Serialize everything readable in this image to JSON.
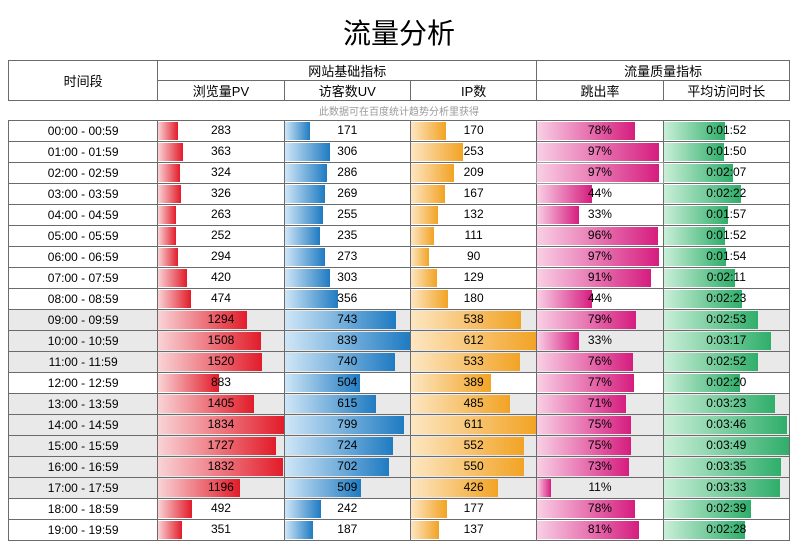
{
  "title": "流量分析",
  "sub_note": "此数据可在百度统计趋势分析里获得",
  "headers": {
    "time": "时间段",
    "group_basic": "网站基础指标",
    "group_quality": "流量质量指标",
    "pv": "浏览量PV",
    "uv": "访客数UV",
    "ip": "IP数",
    "bounce": "跳出率",
    "avg_time": "平均访问时长"
  },
  "colors": {
    "pv": [
      "#f9d3d6",
      "#e21c2a"
    ],
    "uv": [
      "#cfe6f7",
      "#1f7bc2"
    ],
    "ip": [
      "#fde6c2",
      "#f2a324"
    ],
    "bounce": [
      "#f9cfe5",
      "#d61d7f"
    ],
    "time": [
      "#c9efd8",
      "#2fae6a"
    ],
    "border": "#6b6b6b",
    "row_hi": "#e9e9e9"
  },
  "max": {
    "pv": 1834,
    "uv": 839,
    "ip": 612,
    "bounce": 100,
    "time": 229
  },
  "highlight_rows": [
    9,
    10,
    11,
    13,
    14,
    15,
    16,
    17
  ],
  "highlight_bounce_cell_row": 2,
  "rows": [
    {
      "t": "00:00 - 00:59",
      "pv": 283,
      "uv": 171,
      "ip": 170,
      "b": 78,
      "d": "0:01:52",
      "ds": 112
    },
    {
      "t": "01:00 - 01:59",
      "pv": 363,
      "uv": 306,
      "ip": 253,
      "b": 97,
      "d": "0:01:50",
      "ds": 110
    },
    {
      "t": "02:00 - 02:59",
      "pv": 324,
      "uv": 286,
      "ip": 209,
      "b": 97,
      "d": "0:02:07",
      "ds": 127
    },
    {
      "t": "03:00 - 03:59",
      "pv": 326,
      "uv": 269,
      "ip": 167,
      "b": 44,
      "d": "0:02:22",
      "ds": 142
    },
    {
      "t": "04:00 - 04:59",
      "pv": 263,
      "uv": 255,
      "ip": 132,
      "b": 33,
      "d": "0:01:57",
      "ds": 117
    },
    {
      "t": "05:00 - 05:59",
      "pv": 252,
      "uv": 235,
      "ip": 111,
      "b": 96,
      "d": "0:01:52",
      "ds": 112
    },
    {
      "t": "06:00 - 06:59",
      "pv": 294,
      "uv": 273,
      "ip": 90,
      "b": 97,
      "d": "0:01:54",
      "ds": 114
    },
    {
      "t": "07:00 - 07:59",
      "pv": 420,
      "uv": 303,
      "ip": 129,
      "b": 91,
      "d": "0:02:11",
      "ds": 131
    },
    {
      "t": "08:00 - 08:59",
      "pv": 474,
      "uv": 356,
      "ip": 180,
      "b": 44,
      "d": "0:02:23",
      "ds": 143
    },
    {
      "t": "09:00 - 09:59",
      "pv": 1294,
      "uv": 743,
      "ip": 538,
      "b": 79,
      "d": "0:02:53",
      "ds": 173
    },
    {
      "t": "10:00 - 10:59",
      "pv": 1508,
      "uv": 839,
      "ip": 612,
      "b": 33,
      "d": "0:03:17",
      "ds": 197
    },
    {
      "t": "11:00 - 11:59",
      "pv": 1520,
      "uv": 740,
      "ip": 533,
      "b": 76,
      "d": "0:02:52",
      "ds": 172
    },
    {
      "t": "12:00 - 12:59",
      "pv": 883,
      "uv": 504,
      "ip": 389,
      "b": 77,
      "d": "0:02:20",
      "ds": 140
    },
    {
      "t": "13:00 - 13:59",
      "pv": 1405,
      "uv": 615,
      "ip": 485,
      "b": 71,
      "d": "0:03:23",
      "ds": 203
    },
    {
      "t": "14:00 - 14:59",
      "pv": 1834,
      "uv": 799,
      "ip": 611,
      "b": 75,
      "d": "0:03:46",
      "ds": 226
    },
    {
      "t": "15:00 - 15:59",
      "pv": 1727,
      "uv": 724,
      "ip": 552,
      "b": 75,
      "d": "0:03:49",
      "ds": 229
    },
    {
      "t": "16:00 - 16:59",
      "pv": 1832,
      "uv": 702,
      "ip": 550,
      "b": 73,
      "d": "0:03:35",
      "ds": 215
    },
    {
      "t": "17:00 - 17:59",
      "pv": 1196,
      "uv": 509,
      "ip": 426,
      "b": 11,
      "d": "0:03:33",
      "ds": 213
    },
    {
      "t": "18:00 - 18:59",
      "pv": 492,
      "uv": 242,
      "ip": 177,
      "b": 78,
      "d": "0:02:39",
      "ds": 159
    },
    {
      "t": "19:00 - 19:59",
      "pv": 351,
      "uv": 187,
      "ip": 137,
      "b": 81,
      "d": "0:02:28",
      "ds": 148
    }
  ]
}
